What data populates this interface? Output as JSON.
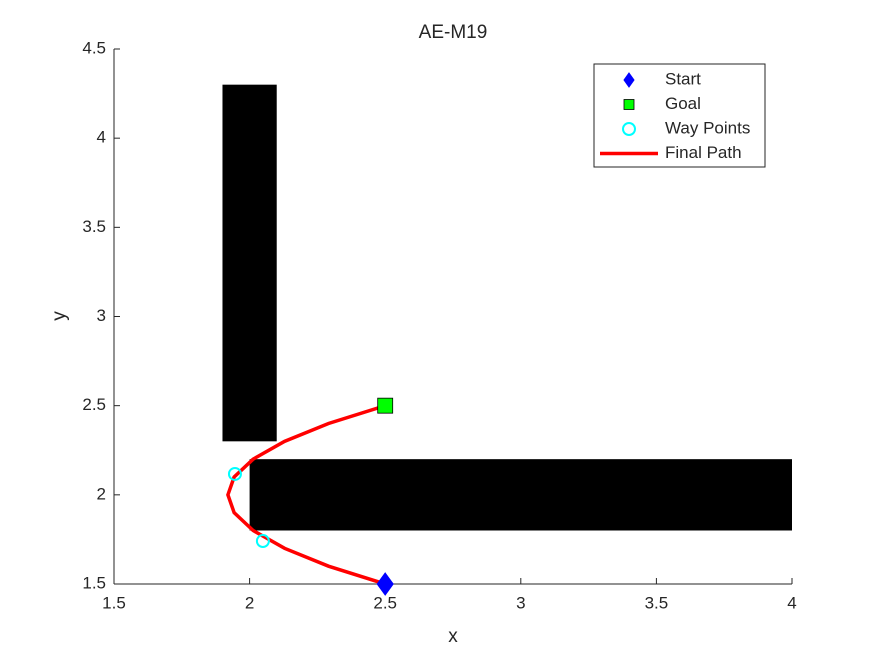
{
  "chart_data": {
    "type": "scatter",
    "title": "AE-M19",
    "xlabel": "x",
    "ylabel": "y",
    "xlim": [
      1.5,
      4
    ],
    "ylim": [
      1.5,
      4.5
    ],
    "xticks": [
      1.5,
      2,
      2.5,
      3,
      3.5,
      4
    ],
    "yticks": [
      1.5,
      2,
      2.5,
      3,
      3.5,
      4,
      4.5
    ],
    "legend": "upper right",
    "grid": false,
    "obstacles": [
      {
        "x": [
          1.9,
          2.1
        ],
        "y": [
          2.3,
          4.3
        ],
        "color": "#000000"
      },
      {
        "x": [
          2.0,
          4.0
        ],
        "y": [
          1.8,
          2.2
        ],
        "color": "#000000"
      }
    ],
    "series": [
      {
        "name": "Start",
        "marker": "diamond",
        "color": "#0000ff",
        "x": [
          2.5
        ],
        "y": [
          1.5
        ]
      },
      {
        "name": "Goal",
        "marker": "square",
        "color": "#00ff00",
        "x": [
          2.5
        ],
        "y": [
          2.5
        ]
      },
      {
        "name": "Way Points",
        "marker": "circle",
        "color": "#00ffff",
        "x": [
          1.946,
          2.049
        ],
        "y": [
          2.117,
          1.741
        ]
      },
      {
        "name": "Final Path",
        "marker": "line",
        "color": "#ff0000",
        "x": [
          2.5,
          2.291,
          2.129,
          2.013,
          1.943,
          1.92,
          1.943,
          2.013,
          2.129,
          2.291,
          2.5
        ],
        "y": [
          1.5,
          1.6,
          1.7,
          1.8,
          1.9,
          2.0,
          2.1,
          2.2,
          2.3,
          2.4,
          2.5
        ]
      }
    ]
  }
}
